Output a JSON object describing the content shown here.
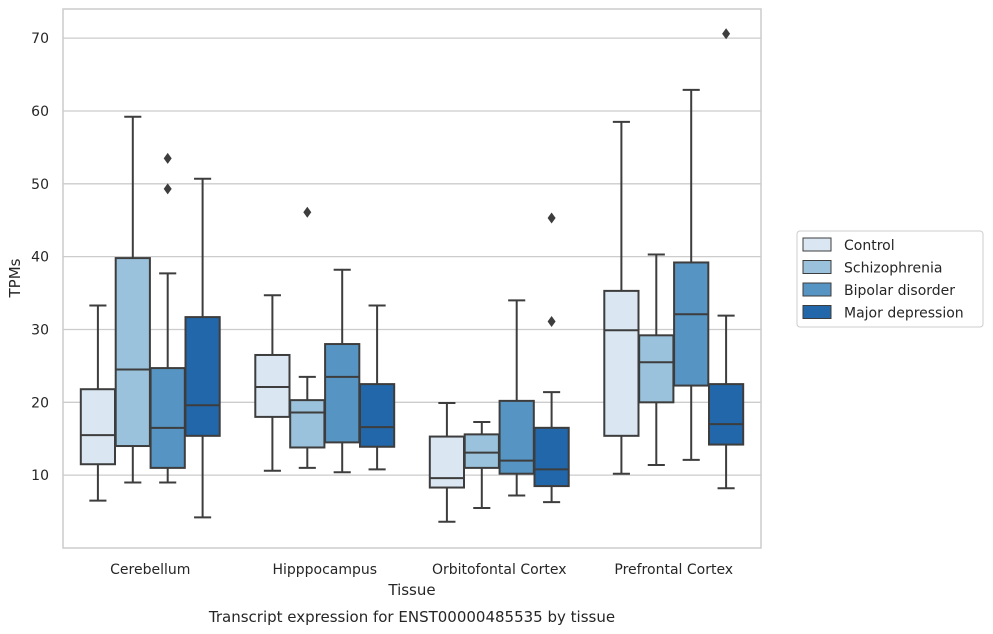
{
  "chart_data": {
    "type": "box",
    "title": "",
    "caption": "Transcript expression for ENST00000485535 by tissue",
    "xlabel": "Tissue",
    "ylabel": "TPMs",
    "ylim": [
      0,
      74
    ],
    "yticks": [
      10,
      20,
      30,
      40,
      50,
      60,
      70
    ],
    "grid": "horizontal",
    "legend_position": "right",
    "categories": [
      "Cerebellum",
      "Hipppocampus",
      "Orbitofontal Cortex",
      "Prefrontal Cortex"
    ],
    "series": [
      {
        "name": "Control",
        "color": "#dae6f2",
        "boxes": [
          {
            "whislo": 6.5,
            "q1": 11.5,
            "med": 15.5,
            "q3": 21.8,
            "whishi": 33.3,
            "fliers": []
          },
          {
            "whislo": 10.6,
            "q1": 18.0,
            "med": 22.1,
            "q3": 26.5,
            "whishi": 34.7,
            "fliers": []
          },
          {
            "whislo": 3.6,
            "q1": 8.3,
            "med": 9.6,
            "q3": 15.3,
            "whishi": 19.9,
            "fliers": []
          },
          {
            "whislo": 10.2,
            "q1": 15.4,
            "med": 29.9,
            "q3": 35.3,
            "whishi": 58.5,
            "fliers": []
          }
        ]
      },
      {
        "name": "Schizophrenia",
        "color": "#9bc2dc",
        "boxes": [
          {
            "whislo": 9.0,
            "q1": 14.0,
            "med": 24.5,
            "q3": 39.8,
            "whishi": 59.2,
            "fliers": []
          },
          {
            "whislo": 11.0,
            "q1": 13.8,
            "med": 18.6,
            "q3": 20.3,
            "whishi": 23.5,
            "fliers": [
              46.1
            ]
          },
          {
            "whislo": 5.5,
            "q1": 11.0,
            "med": 13.1,
            "q3": 15.6,
            "whishi": 17.3,
            "fliers": []
          },
          {
            "whislo": 11.4,
            "q1": 20.0,
            "med": 25.5,
            "q3": 29.2,
            "whishi": 40.3,
            "fliers": []
          }
        ]
      },
      {
        "name": "Bipolar disorder",
        "color": "#5695c3",
        "boxes": [
          {
            "whislo": 9.0,
            "q1": 11.0,
            "med": 16.5,
            "q3": 24.7,
            "whishi": 37.7,
            "fliers": [
              49.3,
              53.5
            ]
          },
          {
            "whislo": 10.4,
            "q1": 14.5,
            "med": 23.5,
            "q3": 28.0,
            "whishi": 38.2,
            "fliers": []
          },
          {
            "whislo": 7.2,
            "q1": 10.2,
            "med": 12.0,
            "q3": 20.2,
            "whishi": 34.0,
            "fliers": []
          },
          {
            "whislo": 12.1,
            "q1": 22.3,
            "med": 32.1,
            "q3": 39.2,
            "whishi": 62.9,
            "fliers": []
          }
        ]
      },
      {
        "name": "Major depression",
        "color": "#2267a9",
        "boxes": [
          {
            "whislo": 4.2,
            "q1": 15.4,
            "med": 19.6,
            "q3": 31.7,
            "whishi": 50.7,
            "fliers": []
          },
          {
            "whislo": 10.8,
            "q1": 13.9,
            "med": 16.6,
            "q3": 22.5,
            "whishi": 33.3,
            "fliers": []
          },
          {
            "whislo": 6.3,
            "q1": 8.5,
            "med": 10.8,
            "q3": 16.5,
            "whishi": 21.4,
            "fliers": [
              31.1,
              45.3
            ]
          },
          {
            "whislo": 8.2,
            "q1": 14.2,
            "med": 17.0,
            "q3": 22.5,
            "whishi": 31.9,
            "fliers": [
              70.6
            ]
          }
        ]
      }
    ]
  }
}
